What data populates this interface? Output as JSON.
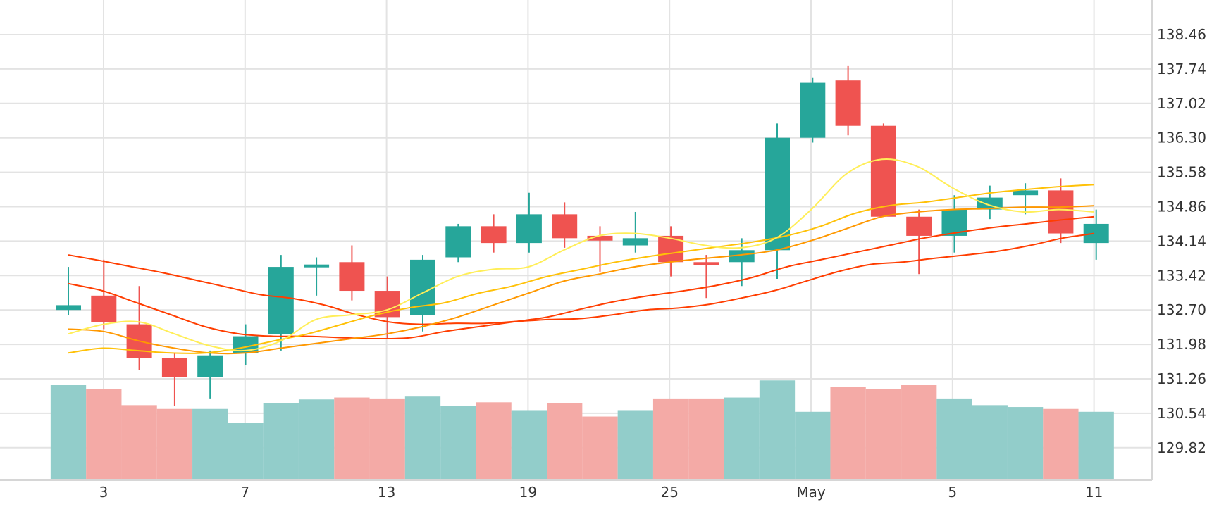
{
  "chart_data": {
    "type": "candlestick",
    "title": "",
    "xlabel": "",
    "ylabel": "",
    "x_ticks": [
      "3",
      "7",
      "13",
      "19",
      "25",
      "May",
      "5",
      "11"
    ],
    "y_ticks": [
      "129.82",
      "130.54",
      "131.26",
      "131.98",
      "132.70",
      "133.42",
      "134.14",
      "134.86",
      "135.58",
      "136.30",
      "137.02",
      "137.74",
      "138.46"
    ],
    "ylim": [
      129.3,
      138.9
    ],
    "grid": true,
    "colors": {
      "up": "#26a69a",
      "down": "#ef5350",
      "volume_up": "#92cdca",
      "volume_down": "#f4aaa6",
      "ma_colors": [
        "#ff3d00",
        "#ff9800",
        "#ffc107",
        "#ffee58"
      ]
    },
    "candles": [
      {
        "open": 132.7,
        "high": 133.6,
        "low": 132.6,
        "close": 132.8,
        "volume": 1.0
      },
      {
        "open": 133.0,
        "high": 133.75,
        "low": 132.3,
        "close": 132.45,
        "volume": 0.96
      },
      {
        "open": 132.4,
        "high": 133.2,
        "low": 131.45,
        "close": 131.7,
        "volume": 0.79
      },
      {
        "open": 131.7,
        "high": 131.8,
        "low": 130.7,
        "close": 131.3,
        "volume": 0.75
      },
      {
        "open": 131.3,
        "high": 131.85,
        "low": 130.85,
        "close": 131.75,
        "volume": 0.75
      },
      {
        "open": 131.8,
        "high": 132.4,
        "low": 131.55,
        "close": 132.15,
        "volume": 0.6
      },
      {
        "open": 132.2,
        "high": 133.85,
        "low": 131.85,
        "close": 133.6,
        "volume": 0.81
      },
      {
        "open": 133.6,
        "high": 133.8,
        "low": 133.0,
        "close": 133.65,
        "volume": 0.85
      },
      {
        "open": 133.7,
        "high": 134.05,
        "low": 132.9,
        "close": 133.1,
        "volume": 0.87
      },
      {
        "open": 133.1,
        "high": 133.4,
        "low": 132.1,
        "close": 132.55,
        "volume": 0.86
      },
      {
        "open": 132.6,
        "high": 133.85,
        "low": 132.25,
        "close": 133.75,
        "volume": 0.88
      },
      {
        "open": 133.8,
        "high": 134.5,
        "low": 133.7,
        "close": 134.45,
        "volume": 0.78
      },
      {
        "open": 134.45,
        "high": 134.7,
        "low": 133.9,
        "close": 134.1,
        "volume": 0.82
      },
      {
        "open": 134.1,
        "high": 135.15,
        "low": 133.9,
        "close": 134.7,
        "volume": 0.73
      },
      {
        "open": 134.7,
        "high": 134.95,
        "low": 134.0,
        "close": 134.2,
        "volume": 0.81
      },
      {
        "open": 134.25,
        "high": 134.45,
        "low": 133.5,
        "close": 134.15,
        "volume": 0.67
      },
      {
        "open": 134.05,
        "high": 134.75,
        "low": 133.9,
        "close": 134.2,
        "volume": 0.73
      },
      {
        "open": 134.25,
        "high": 134.45,
        "low": 133.4,
        "close": 133.7,
        "volume": 0.86
      },
      {
        "open": 133.7,
        "high": 133.85,
        "low": 132.95,
        "close": 133.65,
        "volume": 0.86
      },
      {
        "open": 133.7,
        "high": 134.2,
        "low": 133.2,
        "close": 133.95,
        "volume": 0.87
      },
      {
        "open": 133.95,
        "high": 136.6,
        "low": 133.35,
        "close": 136.3,
        "volume": 1.05
      },
      {
        "open": 136.3,
        "high": 137.55,
        "low": 136.2,
        "close": 137.45,
        "volume": 0.72
      },
      {
        "open": 137.5,
        "high": 137.8,
        "low": 136.35,
        "close": 136.55,
        "volume": 0.98
      },
      {
        "open": 136.55,
        "high": 136.6,
        "low": 134.65,
        "close": 134.65,
        "volume": 0.96
      },
      {
        "open": 134.65,
        "high": 134.8,
        "low": 133.45,
        "close": 134.25,
        "volume": 1.0
      },
      {
        "open": 134.25,
        "high": 135.1,
        "low": 133.9,
        "close": 134.8,
        "volume": 0.86
      },
      {
        "open": 134.8,
        "high": 135.3,
        "low": 134.6,
        "close": 135.05,
        "volume": 0.79
      },
      {
        "open": 135.1,
        "high": 135.35,
        "low": 134.7,
        "close": 135.2,
        "volume": 0.77
      },
      {
        "open": 135.2,
        "high": 135.45,
        "low": 134.1,
        "close": 134.3,
        "volume": 0.75
      },
      {
        "open": 134.1,
        "high": 134.8,
        "low": 133.75,
        "close": 134.5,
        "volume": 0.72
      }
    ],
    "moving_averages": [
      {
        "values": [
          133.85,
          133.73,
          133.6,
          133.47,
          133.32,
          133.17,
          133.02,
          132.94,
          132.8,
          132.6,
          132.45,
          132.4,
          132.42,
          132.42,
          132.46,
          132.5,
          132.52,
          132.6,
          132.7,
          132.74,
          132.82,
          132.95,
          133.1,
          133.3,
          133.5,
          133.65,
          133.7,
          133.78,
          133.85,
          133.93,
          134.05,
          134.2,
          134.3
        ]
      },
      {
        "values": [
          133.25,
          133.1,
          132.85,
          132.6,
          132.35,
          132.2,
          132.15,
          132.15,
          132.12,
          132.1,
          132.12,
          132.25,
          132.35,
          132.45,
          132.55,
          132.72,
          132.88,
          133.0,
          133.1,
          133.22,
          133.38,
          133.6,
          133.75,
          133.9,
          134.05,
          134.2,
          134.32,
          134.42,
          134.5,
          134.58,
          134.65
        ]
      },
      {
        "values": [
          132.3,
          132.25,
          132.05,
          131.9,
          131.8,
          131.8,
          131.9,
          132.0,
          132.1,
          132.2,
          132.35,
          132.55,
          132.8,
          133.05,
          133.3,
          133.45,
          133.6,
          133.7,
          133.78,
          133.85,
          133.95,
          134.15,
          134.4,
          134.65,
          134.75,
          134.8,
          134.82,
          134.85,
          134.85,
          134.88
        ]
      },
      {
        "values": [
          131.8,
          131.9,
          131.85,
          131.8,
          131.8,
          131.9,
          132.05,
          132.2,
          132.4,
          132.6,
          132.75,
          132.85,
          133.05,
          133.2,
          133.4,
          133.55,
          133.7,
          133.82,
          133.92,
          134.02,
          134.12,
          134.25,
          134.45,
          134.72,
          134.88,
          134.95,
          135.05,
          135.15,
          135.22,
          135.28,
          135.32
        ]
      },
      {
        "values": [
          132.2,
          132.4,
          132.45,
          132.2,
          131.95,
          131.85,
          132.05,
          132.5,
          132.6,
          132.7,
          133.05,
          133.4,
          133.55,
          133.6,
          133.95,
          134.25,
          134.3,
          134.2,
          134.05,
          134.0,
          134.2,
          134.8,
          135.55,
          135.85,
          135.7,
          135.25,
          134.9,
          134.75,
          134.8,
          134.75
        ]
      }
    ]
  }
}
